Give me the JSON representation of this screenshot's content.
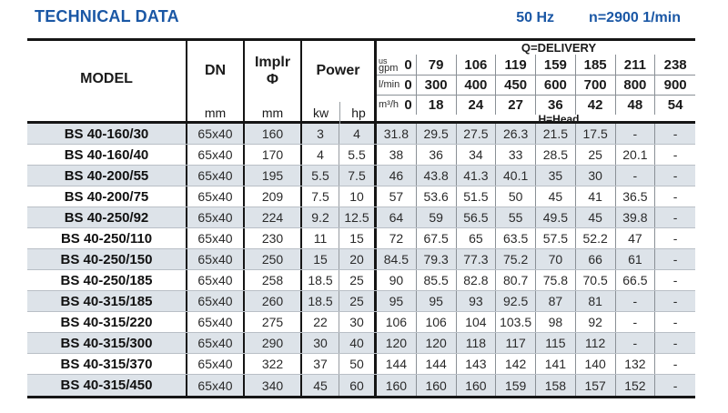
{
  "header": {
    "title": "TECHNICAL DATA",
    "frequency": "50 Hz",
    "speed": "n=2900 1/min"
  },
  "table": {
    "columns": {
      "model_label": "MODEL",
      "dn_label": "DN",
      "dn_unit": "mm",
      "implr_label": "Implr",
      "implr_symbol": "Φ",
      "implr_unit": "mm",
      "power_label": "Power",
      "kw_label": "kw",
      "hp_label": "hp"
    },
    "delivery": {
      "title": "Q=DELIVERY",
      "head_label": "H=Head",
      "unit_rows": [
        {
          "unit_top": "us",
          "unit": "gpm",
          "values": [
            "0",
            "79",
            "106",
            "119",
            "159",
            "185",
            "211",
            "238"
          ]
        },
        {
          "unit_top": "",
          "unit": "l/min",
          "values": [
            "0",
            "300",
            "400",
            "450",
            "600",
            "700",
            "800",
            "900"
          ]
        },
        {
          "unit_top": "",
          "unit": "m³/h",
          "values": [
            "0",
            "18",
            "24",
            "27",
            "36",
            "42",
            "48",
            "54"
          ]
        }
      ]
    },
    "rows": [
      {
        "model": "BS 40-160/30",
        "dn": "65x40",
        "implr": "160",
        "kw": "3",
        "hp": "4",
        "head": [
          "31.8",
          "29.5",
          "27.5",
          "26.3",
          "21.5",
          "17.5",
          "-",
          "-"
        ]
      },
      {
        "model": "BS 40-160/40",
        "dn": "65x40",
        "implr": "170",
        "kw": "4",
        "hp": "5.5",
        "head": [
          "38",
          "36",
          "34",
          "33",
          "28.5",
          "25",
          "20.1",
          "-"
        ]
      },
      {
        "model": "BS 40-200/55",
        "dn": "65x40",
        "implr": "195",
        "kw": "5.5",
        "hp": "7.5",
        "head": [
          "46",
          "43.8",
          "41.3",
          "40.1",
          "35",
          "30",
          "-",
          "-"
        ]
      },
      {
        "model": "BS 40-200/75",
        "dn": "65x40",
        "implr": "209",
        "kw": "7.5",
        "hp": "10",
        "head": [
          "57",
          "53.6",
          "51.5",
          "50",
          "45",
          "41",
          "36.5",
          "-"
        ]
      },
      {
        "model": "BS 40-250/92",
        "dn": "65x40",
        "implr": "224",
        "kw": "9.2",
        "hp": "12.5",
        "head": [
          "64",
          "59",
          "56.5",
          "55",
          "49.5",
          "45",
          "39.8",
          "-"
        ]
      },
      {
        "model": "BS 40-250/110",
        "dn": "65x40",
        "implr": "230",
        "kw": "11",
        "hp": "15",
        "head": [
          "72",
          "67.5",
          "65",
          "63.5",
          "57.5",
          "52.2",
          "47",
          "-"
        ]
      },
      {
        "model": "BS 40-250/150",
        "dn": "65x40",
        "implr": "250",
        "kw": "15",
        "hp": "20",
        "head": [
          "84.5",
          "79.3",
          "77.3",
          "75.2",
          "70",
          "66",
          "61",
          "-"
        ]
      },
      {
        "model": "BS 40-250/185",
        "dn": "65x40",
        "implr": "258",
        "kw": "18.5",
        "hp": "25",
        "head": [
          "90",
          "85.5",
          "82.8",
          "80.7",
          "75.8",
          "70.5",
          "66.5",
          "-"
        ]
      },
      {
        "model": "BS 40-315/185",
        "dn": "65x40",
        "implr": "260",
        "kw": "18.5",
        "hp": "25",
        "head": [
          "95",
          "95",
          "93",
          "92.5",
          "87",
          "81",
          "-",
          "-"
        ]
      },
      {
        "model": "BS 40-315/220",
        "dn": "65x40",
        "implr": "275",
        "kw": "22",
        "hp": "30",
        "head": [
          "106",
          "106",
          "104",
          "103.5",
          "98",
          "92",
          "-",
          "-"
        ]
      },
      {
        "model": "BS 40-315/300",
        "dn": "65x40",
        "implr": "290",
        "kw": "30",
        "hp": "40",
        "head": [
          "120",
          "120",
          "118",
          "117",
          "115",
          "112",
          "-",
          "-"
        ]
      },
      {
        "model": "BS 40-315/370",
        "dn": "65x40",
        "implr": "322",
        "kw": "37",
        "hp": "50",
        "head": [
          "144",
          "144",
          "143",
          "142",
          "141",
          "140",
          "132",
          "-"
        ]
      },
      {
        "model": "BS 40-315/450",
        "dn": "65x40",
        "implr": "340",
        "kw": "45",
        "hp": "60",
        "head": [
          "160",
          "160",
          "160",
          "159",
          "158",
          "157",
          "152",
          "-"
        ]
      }
    ]
  }
}
